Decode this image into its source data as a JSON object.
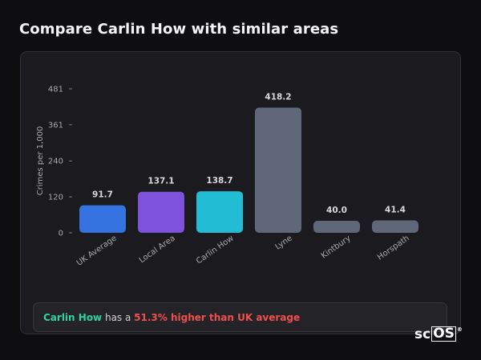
{
  "page": {
    "title": "Compare Carlin How with similar areas"
  },
  "chart_data": {
    "type": "bar",
    "ylabel": "Crimes per 1,000",
    "xlabel": "",
    "yticks": [
      0,
      120,
      240,
      361,
      481
    ],
    "ylim": [
      0,
      481
    ],
    "grid": false,
    "categories": [
      "UK Average",
      "Local Area",
      "Carlin How",
      "Lyne",
      "Kintbury",
      "Horspath"
    ],
    "values": [
      91.7,
      137.1,
      138.7,
      418.2,
      40.0,
      41.4
    ],
    "value_labels": [
      "91.7",
      "137.1",
      "138.7",
      "418.2",
      "40.0",
      "41.4"
    ],
    "colors": [
      "#3472e0",
      "#7f52dc",
      "#22bcd4",
      "#5f6778",
      "#5f6778",
      "#5f6778"
    ]
  },
  "summary": {
    "area": "Carlin How",
    "mid": " has a ",
    "diff": "51.3% higher than UK average"
  },
  "logo": {
    "text_plain": "sc",
    "text_boxed": "OS",
    "mark": "®"
  }
}
